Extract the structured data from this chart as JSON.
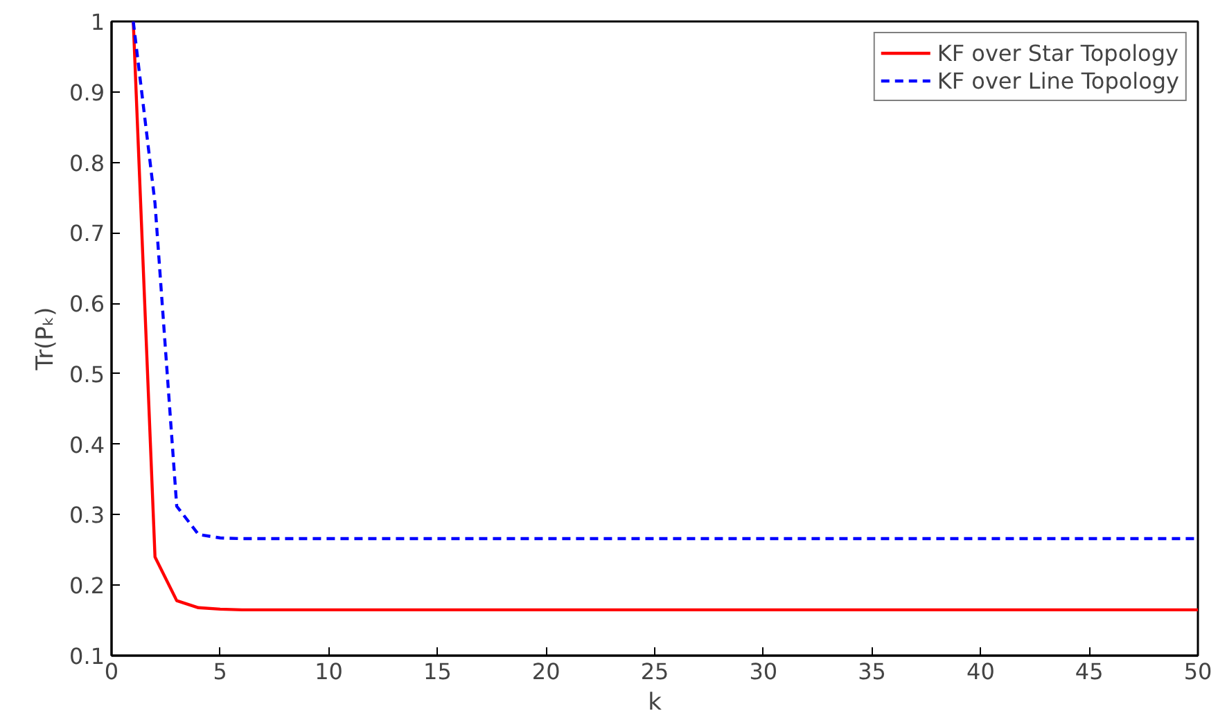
{
  "chart_data": {
    "type": "line",
    "xlabel": "k",
    "ylabel": "Tr(Pₖ)",
    "x": [
      1,
      2,
      3,
      4,
      5,
      6,
      7,
      8,
      9,
      10,
      15,
      20,
      25,
      30,
      35,
      40,
      45,
      50
    ],
    "series": [
      {
        "name": "KF over Star Topology",
        "color": "#ff0000",
        "line_style": "solid",
        "values": [
          1.0,
          0.24,
          0.178,
          0.168,
          0.166,
          0.165,
          0.165,
          0.165,
          0.165,
          0.165,
          0.165,
          0.165,
          0.165,
          0.165,
          0.165,
          0.165,
          0.165,
          0.165
        ]
      },
      {
        "name": "KF over Line Topology",
        "color": "#0000ff",
        "line_style": "dashed",
        "values": [
          1.0,
          0.742,
          0.312,
          0.272,
          0.267,
          0.266,
          0.266,
          0.266,
          0.266,
          0.266,
          0.266,
          0.266,
          0.266,
          0.266,
          0.266,
          0.266,
          0.266,
          0.266
        ]
      }
    ],
    "xlim": [
      0,
      50
    ],
    "ylim": [
      0.1,
      1
    ],
    "xticks": [
      0,
      5,
      10,
      15,
      20,
      25,
      30,
      35,
      40,
      45,
      50
    ],
    "yticks": [
      0.1,
      0.2,
      0.3,
      0.4,
      0.5,
      0.6,
      0.7,
      0.8,
      0.9,
      1
    ],
    "grid": false,
    "legend": "top right",
    "marker": "none"
  }
}
